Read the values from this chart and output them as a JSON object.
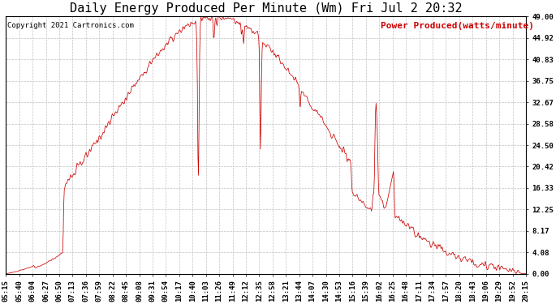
{
  "title": "Daily Energy Produced Per Minute (Wm) Fri Jul 2 20:32",
  "legend_label": "Power Produced(watts/minute)",
  "copyright": "Copyright 2021 Cartronics.com",
  "line_color": "#CC0000",
  "background_color": "#ffffff",
  "grid_color": "#bbbbbb",
  "y_ticks": [
    0.0,
    4.08,
    8.17,
    12.25,
    16.33,
    20.42,
    24.5,
    28.58,
    32.67,
    36.75,
    40.83,
    44.92,
    49.0
  ],
  "ylim": [
    0.0,
    49.0
  ],
  "x_labels": [
    "05:15",
    "05:40",
    "06:04",
    "06:27",
    "06:50",
    "07:13",
    "07:36",
    "07:59",
    "08:22",
    "08:45",
    "09:08",
    "09:31",
    "09:54",
    "10:17",
    "10:40",
    "11:03",
    "11:26",
    "11:49",
    "12:12",
    "12:35",
    "12:58",
    "13:21",
    "13:44",
    "14:07",
    "14:30",
    "14:53",
    "15:16",
    "15:39",
    "16:02",
    "16:25",
    "16:48",
    "17:11",
    "17:34",
    "17:57",
    "18:20",
    "18:43",
    "19:06",
    "19:29",
    "19:52",
    "20:15"
  ],
  "title_fontsize": 11,
  "axis_fontsize": 6.5,
  "copyright_fontsize": 6.5,
  "legend_fontsize": 8
}
